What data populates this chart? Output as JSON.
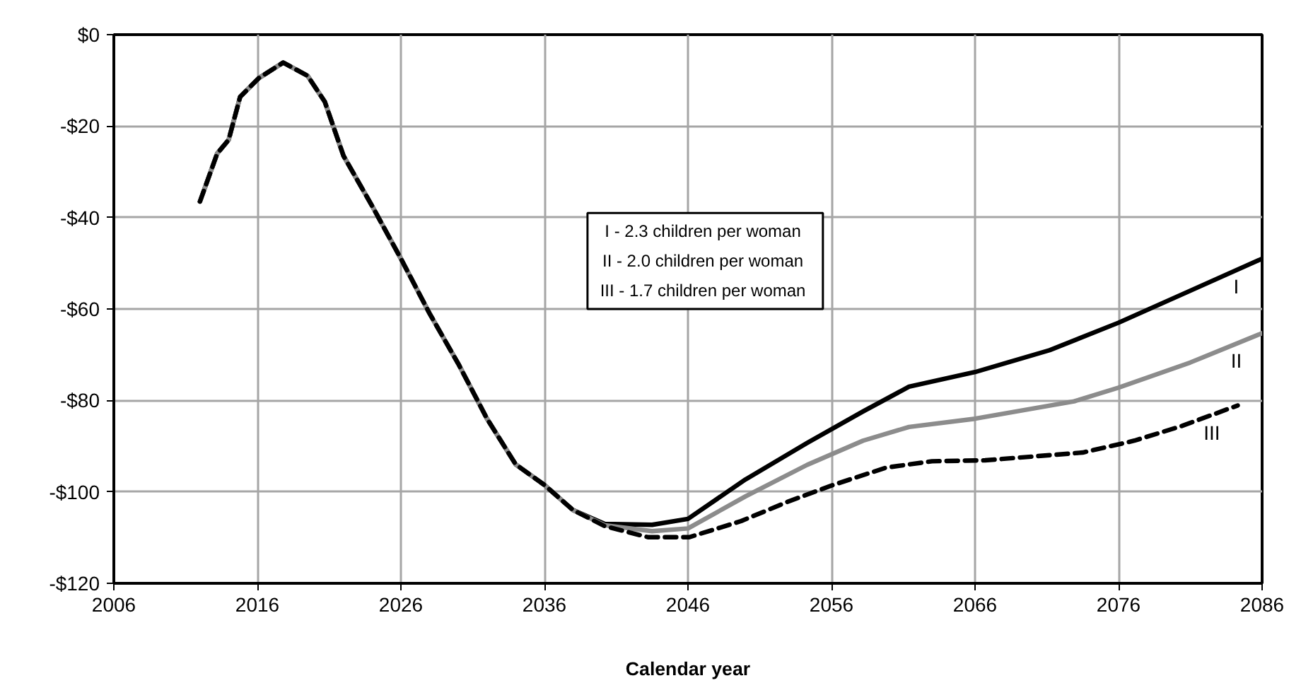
{
  "chart_data": {
    "type": "line",
    "xlabel": "Calendar year",
    "annotations": [
      "I - 2.3  children per woman",
      "II - 2.0  children per woman",
      "III - 1.7  children per woman"
    ],
    "xlim": [
      2006,
      2086
    ],
    "xticks": [
      2006,
      2016,
      2026,
      2036,
      2046,
      2056,
      2066,
      2076,
      2086
    ],
    "ylim": [
      -120,
      0
    ],
    "yticks": [
      {
        "value": 0,
        "label": "$0"
      },
      {
        "value": -20,
        "label": "-$20"
      },
      {
        "value": -40,
        "label": "-$40"
      },
      {
        "value": -60,
        "label": "-$60"
      },
      {
        "value": -80,
        "label": "-$80"
      },
      {
        "value": -100,
        "label": "-$100"
      },
      {
        "value": -120,
        "label": "-$120"
      }
    ],
    "grid": true,
    "series": [
      {
        "name": "I",
        "color": "#000000",
        "line_style": "solid",
        "x": [
          2012,
          2013.2,
          2014,
          2014.8,
          2016.1,
          2017.8,
          2019.5,
          2020.7,
          2022,
          2024,
          2026,
          2028,
          2030,
          2032,
          2034,
          2036,
          2038,
          2040.2,
          2043.5,
          2046,
          2050,
          2054.3,
          2058.2,
          2061.4,
          2066,
          2071.2,
          2076,
          2081,
          2086
        ],
        "values": [
          -36.5,
          -26,
          -23,
          -13.6,
          -9.5,
          -6.1,
          -9,
          -14.7,
          -26.5,
          -37.5,
          -49,
          -61,
          -72,
          -84,
          -94,
          -98.5,
          -104,
          -107,
          -107.2,
          -105.9,
          -97.3,
          -89.3,
          -82.4,
          -77,
          -73.8,
          -69,
          -63,
          -56,
          -49
        ]
      },
      {
        "name": "II",
        "color": "#8c8c8c",
        "line_style": "solid",
        "x": [
          2012,
          2013.2,
          2014,
          2014.8,
          2016.1,
          2017.8,
          2019.5,
          2020.7,
          2022,
          2024,
          2026,
          2028,
          2030,
          2032,
          2034,
          2036,
          2038,
          2040.2,
          2043.5,
          2046,
          2050,
          2054.3,
          2058.2,
          2061.4,
          2066,
          2072.9,
          2076,
          2081,
          2086
        ],
        "values": [
          -36.5,
          -26,
          -23,
          -13.6,
          -9.5,
          -6.1,
          -9,
          -14.7,
          -26.5,
          -37.5,
          -49,
          -61,
          -72,
          -84,
          -94,
          -98.5,
          -104,
          -107.3,
          -108.6,
          -108,
          -101,
          -94.1,
          -88.8,
          -85.8,
          -84,
          -80.2,
          -77.2,
          -71.7,
          -65.3
        ]
      },
      {
        "name": "III",
        "color": "#000000",
        "line_style": "dashed",
        "x": [
          2012,
          2013.2,
          2014,
          2014.8,
          2016.1,
          2017.8,
          2019.5,
          2020.7,
          2022,
          2024,
          2026,
          2028,
          2030,
          2032,
          2034,
          2036,
          2038,
          2040.2,
          2043.2,
          2046.1,
          2049.7,
          2053,
          2056.2,
          2059.8,
          2063,
          2066.7,
          2073.5,
          2077.1,
          2080.4,
          2084.3
        ],
        "values": [
          -36.5,
          -26,
          -23,
          -13.6,
          -9.5,
          -6.1,
          -9,
          -14.7,
          -26.5,
          -37.5,
          -49,
          -61,
          -72,
          -84,
          -94,
          -98.5,
          -104,
          -107.5,
          -109.9,
          -109.9,
          -106.4,
          -102.1,
          -98.4,
          -94.7,
          -93.3,
          -93.1,
          -91.4,
          -88.8,
          -85.6,
          -81.1
        ]
      }
    ]
  }
}
